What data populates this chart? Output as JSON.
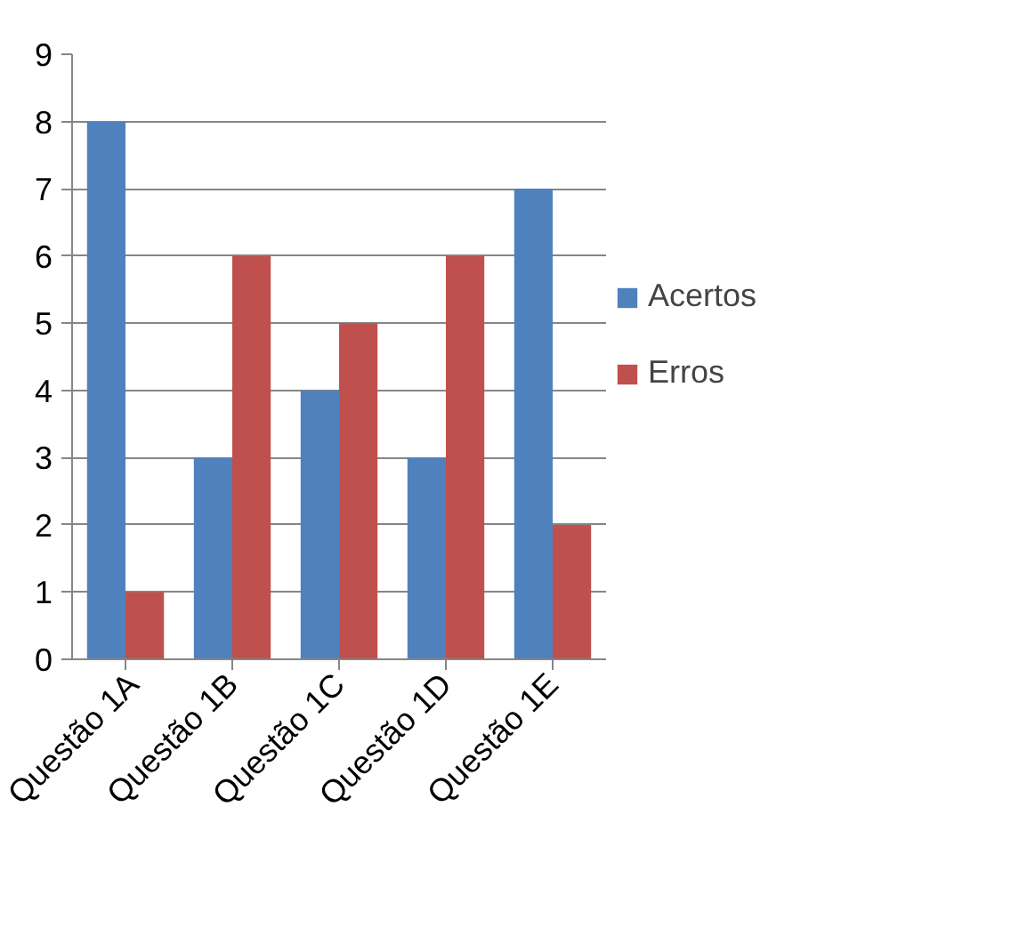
{
  "chart_data": {
    "type": "bar",
    "categories": [
      "Questão 1A",
      "Questão 1B",
      "Questão 1C",
      "Questão 1D",
      "Questão 1E"
    ],
    "series": [
      {
        "name": "Acertos",
        "color": "#4f81bd",
        "values": [
          8,
          3,
          4,
          3,
          7
        ]
      },
      {
        "name": "Erros",
        "color": "#c0504d",
        "values": [
          1,
          6,
          5,
          6,
          2
        ]
      }
    ],
    "ylim": [
      0,
      9
    ],
    "yticks": [
      0,
      1,
      2,
      3,
      4,
      5,
      6,
      7,
      8,
      9
    ],
    "grid": "y",
    "legend": "right"
  }
}
